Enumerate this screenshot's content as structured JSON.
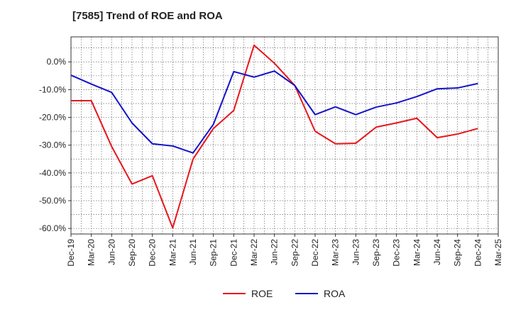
{
  "chart_data": {
    "type": "line",
    "title": "[7585]  Trend of ROE and ROA",
    "xlabel": "",
    "ylabel": "",
    "ylim": [
      -62,
      9
    ],
    "yticks": [
      "0.0%",
      "-10.0%",
      "-20.0%",
      "-30.0%",
      "-40.0%",
      "-50.0%",
      "-60.0%"
    ],
    "ytick_values": [
      0,
      -10,
      -20,
      -30,
      -40,
      -50,
      -60
    ],
    "categories": [
      "Dec-19",
      "Mar-20",
      "Jun-20",
      "Sep-20",
      "Dec-20",
      "Mar-21",
      "Jun-21",
      "Sep-21",
      "Dec-21",
      "Mar-22",
      "Jun-22",
      "Sep-22",
      "Dec-22",
      "Mar-23",
      "Jun-23",
      "Sep-23",
      "Dec-23",
      "Mar-24",
      "Jun-24",
      "Sep-24",
      "Dec-24",
      "Mar-25"
    ],
    "grid": true,
    "legend_position": "bottom-center",
    "series": [
      {
        "name": "ROE",
        "color": "#e8161c",
        "values": [
          -14.0,
          -14.0,
          -30.5,
          -44.0,
          -41.0,
          -59.8,
          -35.0,
          -24.0,
          -17.5,
          6.0,
          -0.5,
          -8.5,
          -25.0,
          -29.5,
          -29.3,
          -23.5,
          -22.0,
          -20.3,
          -27.3,
          -26.0,
          -24.0,
          null
        ]
      },
      {
        "name": "ROA",
        "color": "#1414c8",
        "values": [
          -4.8,
          -8.0,
          -11.0,
          -22.0,
          -29.5,
          -30.3,
          -32.8,
          -22.5,
          -3.5,
          -5.5,
          -3.3,
          -8.5,
          -19.0,
          -16.2,
          -19.0,
          -16.3,
          -14.8,
          -12.5,
          -9.7,
          -9.4,
          -7.8,
          null
        ]
      }
    ]
  }
}
